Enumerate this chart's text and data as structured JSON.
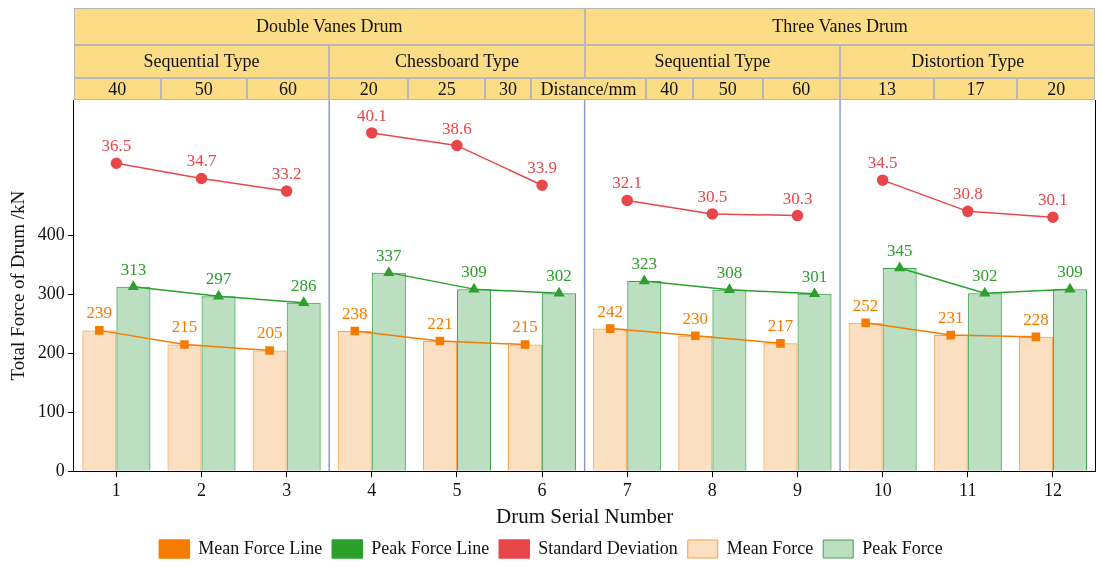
{
  "chart_data": {
    "type": "bar",
    "x": [
      1,
      2,
      3,
      4,
      5,
      6,
      7,
      8,
      9,
      10,
      11,
      12
    ],
    "xlim": [
      0.5,
      12.5
    ],
    "xticks": [
      1,
      2,
      3,
      4,
      5,
      6,
      7,
      8,
      9,
      10,
      11,
      12
    ],
    "ylim": [
      0,
      630
    ],
    "yticks": [
      0,
      100,
      200,
      300,
      400
    ],
    "y2lim": [
      0,
      44
    ],
    "xlabel": "Drum Serial Number",
    "ylabel": "Total Force of Drum /kN",
    "legend": "bottom",
    "grid": false,
    "annotations": [
      "Double Vanes Drum",
      "Three Vanes Drum",
      "Sequential Type",
      "Chessboard Type",
      "Sequential Type",
      "Distortion Type",
      "40",
      "50",
      "60",
      "20",
      "25",
      "30",
      "Distance/mm",
      "40",
      "50",
      "60",
      "13",
      "17",
      "20"
    ],
    "ref_lines": [
      {
        "axis": "x",
        "value": 3.5,
        "color": "#8c9ccf"
      },
      {
        "axis": "x",
        "value": 6.5,
        "color": "#8c9ccf"
      },
      {
        "axis": "x",
        "value": 9.5,
        "color": "#8c9ccf"
      }
    ],
    "series": [
      {
        "name": "Mean Force",
        "color": "#f5a04a",
        "values": [
          239,
          215,
          205,
          238,
          221,
          215,
          242,
          230,
          217,
          252,
          231,
          228
        ]
      },
      {
        "name": "Peak Force",
        "color": "#3fa34d",
        "values": [
          313,
          297,
          286,
          337,
          309,
          302,
          323,
          308,
          301,
          345,
          302,
          309
        ]
      },
      {
        "name": "Mean Force Line",
        "type": "line",
        "color": "#f57c00",
        "marker": "square",
        "x": [
          0.8,
          1.8,
          2.8,
          3.5,
          3.8,
          4.8,
          5.8,
          6.5,
          6.8,
          7.8,
          8.8,
          9.5,
          9.8,
          10.8,
          11.8
        ],
        "values": [
          239,
          215,
          205,
          null,
          238,
          221,
          215,
          null,
          242,
          230,
          217,
          null,
          252,
          231,
          228
        ],
        "value_labels": [
          "239",
          "215",
          "205",
          null,
          "238",
          "221",
          "215",
          null,
          "242",
          "230",
          "217",
          null,
          "252",
          "231",
          "228"
        ]
      },
      {
        "name": "Peak Force Line",
        "type": "line",
        "color": "#2ca02c",
        "marker": "triangle",
        "x": [
          1.2,
          2.2,
          3.2,
          3.5,
          4.2,
          5.2,
          6.2,
          6.5,
          7.2,
          8.2,
          9.2,
          9.5,
          10.2,
          11.2,
          12.2
        ],
        "values": [
          313,
          297,
          286,
          null,
          337,
          309,
          302,
          null,
          323,
          308,
          301,
          null,
          345,
          302,
          309
        ],
        "value_labels": [
          "313",
          "297",
          "286",
          null,
          "337",
          "309",
          "302",
          null,
          "323",
          "308",
          "301",
          null,
          "345",
          "302",
          "309"
        ]
      },
      {
        "name": "Standard Deviation",
        "type": "line",
        "axis": "y2",
        "color": "#e8474a",
        "marker": "circle",
        "x": [
          1,
          2,
          3,
          3.5,
          4,
          5,
          6,
          6.5,
          7,
          8,
          9,
          9.5,
          10,
          11,
          12
        ],
        "values": [
          36.5,
          34.7,
          33.2,
          null,
          40.1,
          38.6,
          33.9,
          null,
          32.1,
          30.5,
          30.3,
          null,
          34.5,
          30.8,
          30.1
        ],
        "value_labels": [
          "36.5",
          "34.7",
          "33.2",
          null,
          "40.1",
          "38.6",
          "33.9",
          null,
          "32.1",
          "30.5",
          "30.3",
          null,
          "34.5",
          "30.8",
          "30.1"
        ]
      }
    ]
  }
}
